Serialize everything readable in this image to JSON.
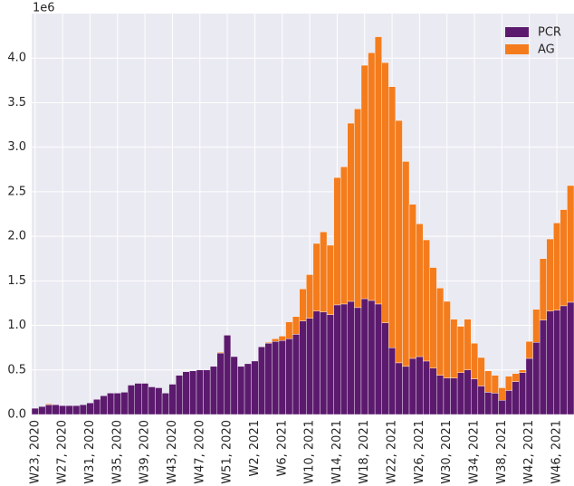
{
  "chart_data": {
    "type": "stacked_bar",
    "y_offset_label": "1e6",
    "categories": [
      "W23, 2020",
      null,
      null,
      null,
      "W27, 2020",
      null,
      null,
      null,
      "W31, 2020",
      null,
      null,
      null,
      "W35, 2020",
      null,
      null,
      null,
      "W39, 2020",
      null,
      null,
      null,
      "W43, 2020",
      null,
      null,
      null,
      "W47, 2020",
      null,
      null,
      null,
      "W51, 2020",
      null,
      null,
      null,
      "W2, 2021",
      null,
      null,
      null,
      "W6, 2021",
      null,
      null,
      null,
      "W10, 2021",
      null,
      null,
      null,
      "W14, 2021",
      null,
      null,
      null,
      "W18, 2021",
      null,
      null,
      null,
      "W22, 2021",
      null,
      null,
      null,
      "W26, 2021",
      null,
      null,
      null,
      "W30, 2021",
      null,
      null,
      null,
      "W34, 2021",
      null,
      null,
      null,
      "W38, 2021",
      null,
      null,
      null,
      "W42, 2021",
      null,
      null,
      null,
      "W46, 2021",
      null,
      null
    ],
    "series": [
      {
        "name": "PCR",
        "color": "#5c1a6e",
        "values": [
          0.07,
          0.09,
          0.11,
          0.11,
          0.1,
          0.1,
          0.1,
          0.11,
          0.13,
          0.17,
          0.21,
          0.24,
          0.24,
          0.25,
          0.33,
          0.35,
          0.35,
          0.31,
          0.3,
          0.24,
          0.34,
          0.44,
          0.48,
          0.49,
          0.5,
          0.5,
          0.54,
          0.69,
          0.89,
          0.65,
          0.54,
          0.57,
          0.6,
          0.76,
          0.8,
          0.82,
          0.83,
          0.85,
          0.9,
          1.05,
          1.08,
          1.16,
          1.15,
          1.12,
          1.23,
          1.24,
          1.27,
          1.2,
          1.3,
          1.28,
          1.24,
          1.03,
          0.75,
          0.58,
          0.54,
          0.63,
          0.65,
          0.6,
          0.52,
          0.44,
          0.41,
          0.41,
          0.47,
          0.5,
          0.4,
          0.32,
          0.25,
          0.24,
          0.16,
          0.27,
          0.37,
          0.47,
          0.63,
          0.81,
          1.06,
          1.16,
          1.17,
          1.22,
          1.26
        ]
      },
      {
        "name": "AG",
        "color": "#f47c1c",
        "values": [
          0,
          0,
          0.01,
          0,
          0,
          0,
          0,
          0,
          0,
          0,
          0,
          0,
          0,
          0,
          0,
          0,
          0,
          0,
          0,
          0,
          0,
          0,
          0,
          0,
          0,
          0,
          0,
          0.01,
          0,
          0,
          0,
          0,
          0,
          0,
          0.01,
          0.03,
          0.05,
          0.19,
          0.2,
          0.36,
          0.49,
          0.76,
          0.9,
          0.78,
          1.43,
          1.54,
          2.0,
          2.23,
          2.62,
          2.78,
          3.0,
          2.92,
          2.93,
          2.72,
          2.3,
          1.73,
          1.49,
          1.36,
          1.13,
          0.98,
          0.86,
          0.66,
          0.52,
          0.57,
          0.4,
          0.32,
          0.24,
          0.2,
          0.14,
          0.16,
          0.09,
          0.03,
          0.19,
          0.37,
          0.69,
          0.81,
          0.98,
          1.08,
          1.31
        ]
      }
    ],
    "ylim": [
      0,
      4.5
    ],
    "yticks": [
      {
        "value": 0,
        "label": "0.0"
      },
      0.5,
      {
        "value": 1,
        "label": "1.0"
      },
      1.5,
      {
        "value": 2,
        "label": "2.0"
      },
      2.5,
      {
        "value": 3,
        "label": "3.0"
      },
      3.5,
      {
        "value": 4,
        "label": "4.0"
      }
    ],
    "grid": true,
    "legend": "upper-right"
  }
}
